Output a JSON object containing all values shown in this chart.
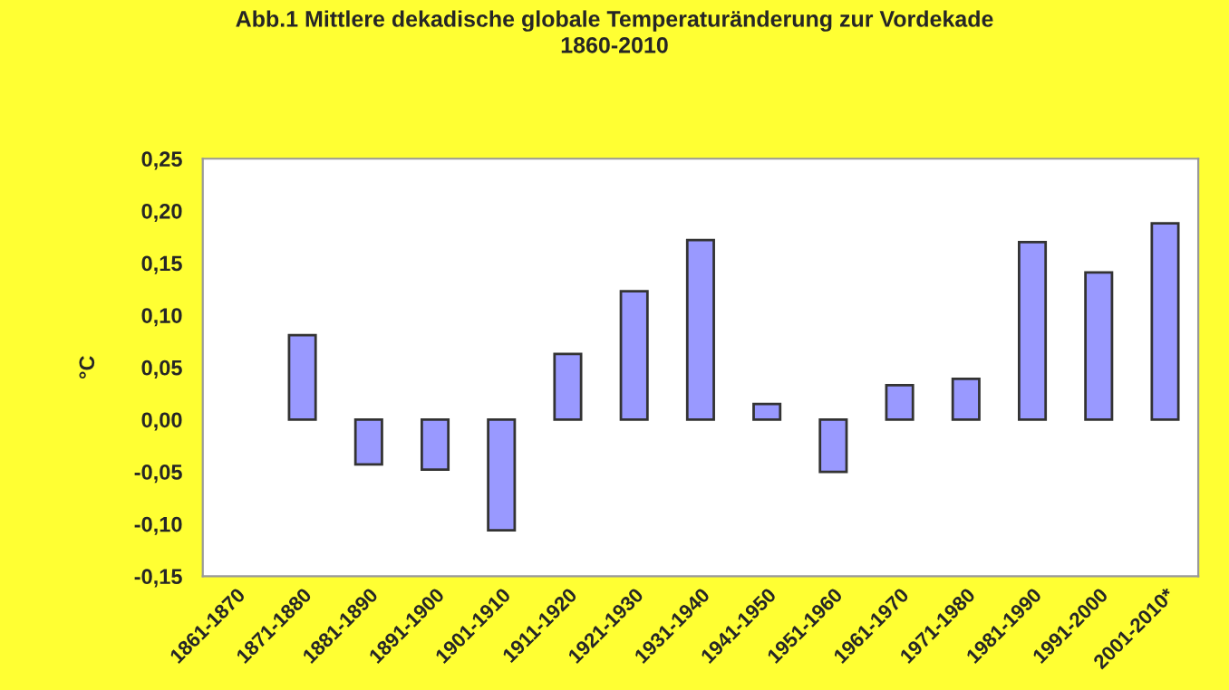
{
  "chart_data": {
    "type": "bar",
    "title": "Abb.1 Mittlere dekadische globale Temperaturänderung zur Vordekade\n1860-2010",
    "ylabel": "°C",
    "categories": [
      "1861-1870",
      "1871-1880",
      "1881-1890",
      "1891-1900",
      "1901-1910",
      "1911-1920",
      "1921-1930",
      "1931-1940",
      "1941-1950",
      "1951-1960",
      "1961-1970",
      "1971-1980",
      "1981-1990",
      "1991-2000",
      "2001-2010*"
    ],
    "values": [
      null,
      0.081,
      -0.043,
      -0.048,
      -0.106,
      0.063,
      0.123,
      0.172,
      0.015,
      -0.05,
      0.033,
      0.039,
      0.17,
      0.141,
      0.188
    ],
    "color": "#9999ff",
    "ylim": [
      -0.15,
      0.25
    ],
    "yticks": [
      {
        "value": -0.15,
        "label": "-0,15"
      },
      {
        "value": -0.1,
        "label": "-0,10"
      },
      {
        "value": -0.05,
        "label": "-0,05"
      },
      {
        "value": 0,
        "label": "0,00"
      },
      {
        "value": 0.05,
        "label": "0,05"
      },
      {
        "value": 0.1,
        "label": "0,10"
      },
      {
        "value": 0.15,
        "label": "0,15"
      },
      {
        "value": 0.2,
        "label": "0,20"
      },
      {
        "value": 0.25,
        "label": "0,25"
      }
    ],
    "grid": false,
    "legend": false
  }
}
